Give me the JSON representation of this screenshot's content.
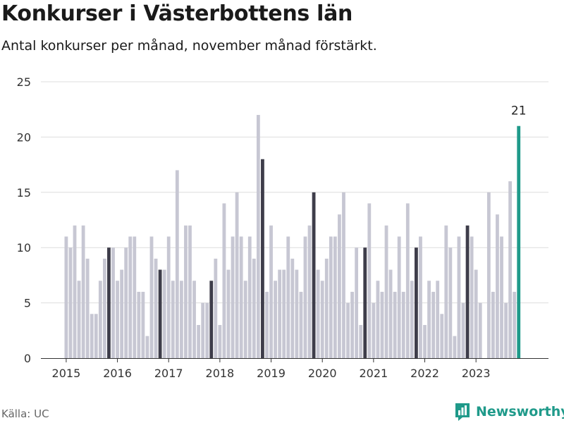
{
  "header": {
    "title": "Konkurser i Västerbottens län",
    "subtitle": "Antal konkurser per månad, november månad förstärkt."
  },
  "footer": {
    "source": "Källa: UC",
    "brand": "Newsworthy"
  },
  "colors": {
    "bar": "#c7c7d3",
    "november": "#3e3d4a",
    "latest": "#1f9a8a",
    "grid": "#dddddd",
    "axis": "#333333"
  },
  "chart_data": {
    "type": "bar",
    "title": "Konkurser i Västerbottens län",
    "subtitle": "Antal konkurser per månad, november månad förstärkt.",
    "ylim": [
      0,
      25
    ],
    "yticks": [
      0,
      5,
      10,
      15,
      20,
      25
    ],
    "grid": true,
    "start": "2015-01",
    "x_tick_labels": [
      "2015",
      "2016",
      "2017",
      "2018",
      "2019",
      "2020",
      "2021",
      "2022",
      "2023"
    ],
    "highlight": "november",
    "annotation": {
      "label": "21",
      "month": "2023-11"
    },
    "series": [
      {
        "year": "2015",
        "values": [
          11,
          10,
          12,
          7,
          12,
          9,
          4,
          4,
          7,
          9,
          10,
          10
        ]
      },
      {
        "year": "2016",
        "values": [
          7,
          8,
          10,
          11,
          11,
          6,
          6,
          2,
          11,
          9,
          8,
          8
        ]
      },
      {
        "year": "2017",
        "values": [
          11,
          7,
          17,
          7,
          12,
          12,
          7,
          3,
          5,
          5,
          7,
          9
        ]
      },
      {
        "year": "2018",
        "values": [
          3,
          14,
          8,
          11,
          15,
          11,
          7,
          11,
          9,
          22,
          18,
          6
        ]
      },
      {
        "year": "2019",
        "values": [
          12,
          7,
          8,
          8,
          11,
          9,
          8,
          6,
          11,
          12,
          15,
          8
        ]
      },
      {
        "year": "2020",
        "values": [
          7,
          9,
          11,
          11,
          13,
          15,
          5,
          6,
          10,
          3,
          10,
          14
        ]
      },
      {
        "year": "2021",
        "values": [
          5,
          7,
          6,
          12,
          8,
          6,
          11,
          6,
          14,
          7,
          10,
          11
        ]
      },
      {
        "year": "2022",
        "values": [
          3,
          7,
          6,
          7,
          4,
          12,
          10,
          2,
          11,
          5,
          12,
          11
        ]
      },
      {
        "year": "2023",
        "values": [
          8,
          5,
          0,
          15,
          6,
          13,
          11,
          5,
          16,
          6,
          21
        ]
      }
    ]
  }
}
